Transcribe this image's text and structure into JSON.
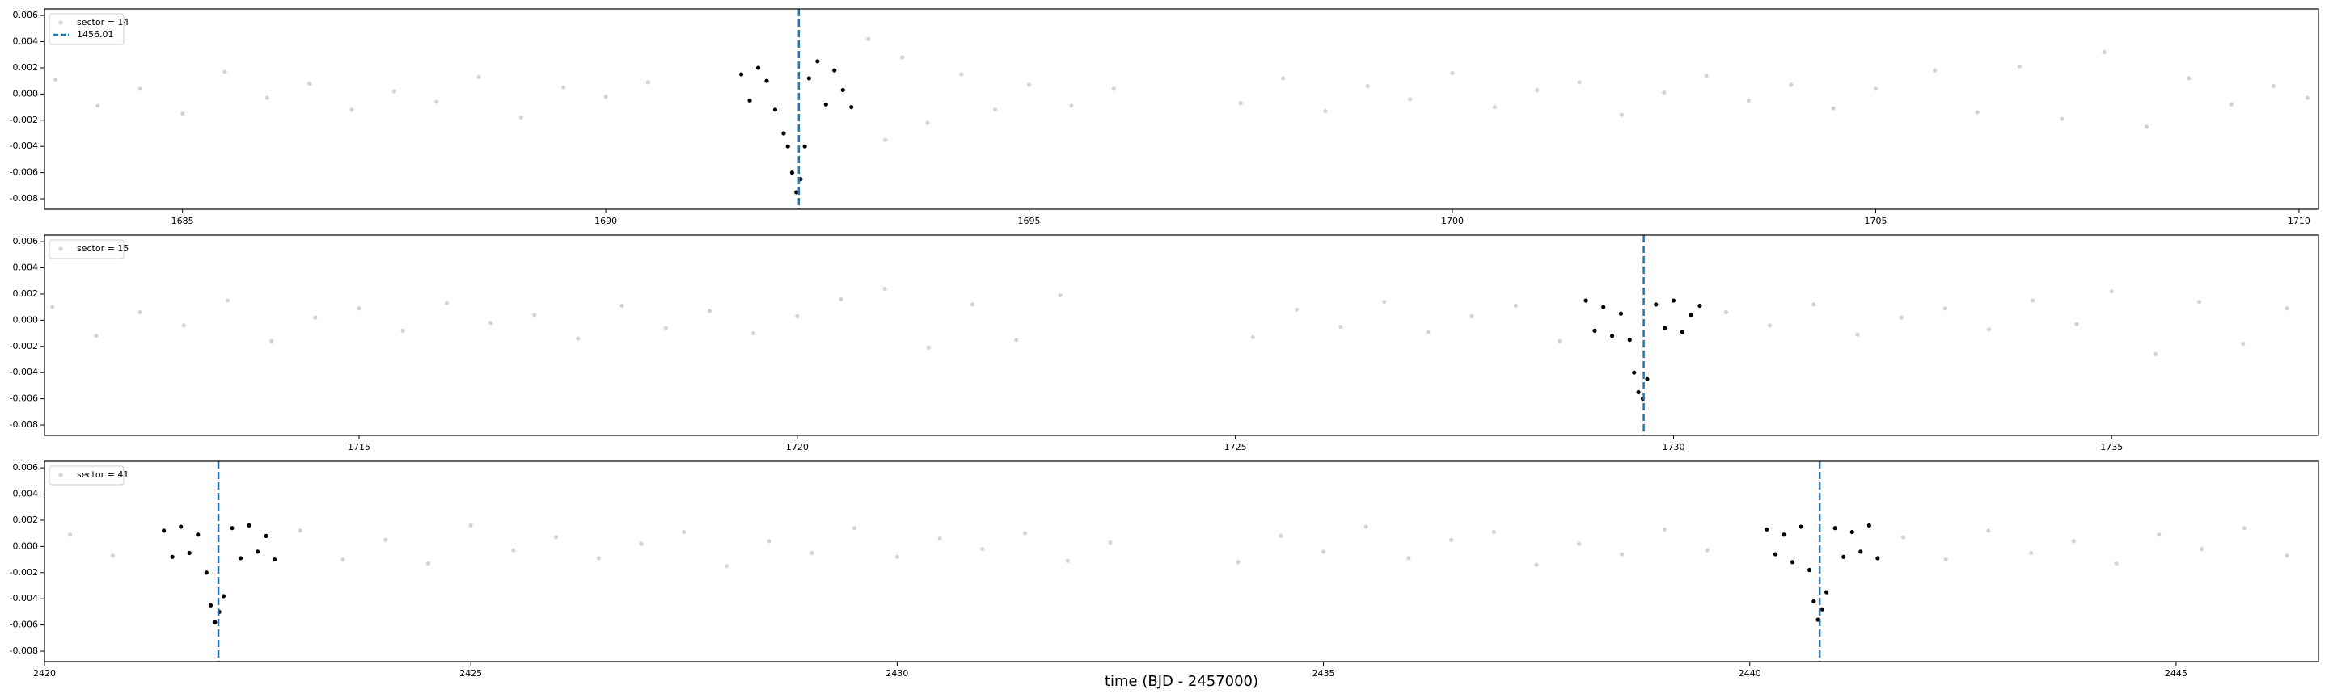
{
  "chart_data": [
    {
      "type": "scatter",
      "xlim": [
        1683.37,
        1710.23
      ],
      "xticks": [
        1685,
        1690,
        1695,
        1700,
        1705,
        1710
      ],
      "ylim": [
        -0.0088,
        0.0065
      ],
      "yticks": [
        -0.008,
        -0.006,
        -0.004,
        -0.002,
        {
          "value": 0,
          "label": "0.000"
        },
        0.002,
        0.004,
        0.006
      ],
      "legend": "upper left",
      "series": [
        {
          "name": "sector = 14",
          "color": "#d3d3d3",
          "x": [
            1683.5,
            1684.0,
            1684.5,
            1685.0,
            1685.5,
            1686.0,
            1686.5,
            1687.0,
            1687.5,
            1688.0,
            1688.5,
            1689.0,
            1689.5,
            1690.0,
            1690.5,
            1693.1,
            1693.3,
            1693.5,
            1693.8,
            1694.2,
            1694.6,
            1695.0,
            1695.5,
            1696.0,
            1697.5,
            1698.0,
            1698.5,
            1699.0,
            1699.5,
            1700.0,
            1700.5,
            1701.0,
            1701.5,
            1702.0,
            1702.5,
            1703.0,
            1703.5,
            1704.0,
            1704.5,
            1705.0,
            1705.7,
            1706.2,
            1706.7,
            1707.2,
            1707.7,
            1708.2,
            1708.7,
            1709.2,
            1709.7,
            1710.1
          ],
          "values": [
            0.0011,
            -0.0009,
            0.0004,
            -0.0015,
            0.0017,
            -0.0003,
            0.0008,
            -0.0012,
            0.0002,
            -0.0006,
            0.0013,
            -0.0018,
            0.0005,
            -0.0002,
            0.0009,
            0.0042,
            -0.0035,
            0.0028,
            -0.0022,
            0.0015,
            -0.0012,
            0.0007,
            -0.0009,
            0.0004,
            -0.0007,
            0.0012,
            -0.0013,
            0.0006,
            -0.0004,
            0.0016,
            -0.001,
            0.0003,
            0.0009,
            -0.0016,
            0.0001,
            0.0014,
            -0.0005,
            0.0007,
            -0.0011,
            0.0004,
            0.0018,
            -0.0014,
            0.0021,
            -0.0019,
            0.0032,
            -0.0025,
            0.0012,
            -0.0008,
            0.0006,
            -0.0003
          ]
        },
        {
          "color": "#000000",
          "x": [
            1691.6,
            1691.7,
            1691.8,
            1691.9,
            1692.0,
            1692.1,
            1692.15,
            1692.2,
            1692.25,
            1692.3,
            1692.35,
            1692.4,
            1692.5,
            1692.6,
            1692.7,
            1692.8,
            1692.9
          ],
          "values": [
            0.0015,
            -0.0005,
            0.002,
            0.001,
            -0.0012,
            -0.003,
            -0.004,
            -0.006,
            -0.0075,
            -0.0065,
            -0.004,
            0.0012,
            0.0025,
            -0.0008,
            0.0018,
            0.0003,
            -0.001
          ]
        }
      ],
      "vlines": {
        "name": "1456.01",
        "color": "#1f77b4",
        "x": [
          1692.28
        ]
      }
    },
    {
      "type": "scatter",
      "xlim": [
        1711.41,
        1737.36
      ],
      "xticks": [
        1715,
        1720,
        1725,
        1730,
        1735
      ],
      "ylim": [
        -0.0088,
        0.0065
      ],
      "yticks": [
        -0.008,
        -0.006,
        -0.004,
        -0.002,
        {
          "value": 0,
          "label": "0.000"
        },
        0.002,
        0.004,
        0.006
      ],
      "legend": "upper left",
      "series": [
        {
          "name": "sector = 15",
          "color": "#d3d3d3",
          "x": [
            1711.5,
            1712.0,
            1712.5,
            1713.0,
            1713.5,
            1714.0,
            1714.5,
            1715.0,
            1715.5,
            1716.0,
            1716.5,
            1717.0,
            1717.5,
            1718.0,
            1718.5,
            1719.0,
            1719.5,
            1720.0,
            1720.5,
            1721.0,
            1721.5,
            1722.0,
            1722.5,
            1723.0,
            1725.2,
            1725.7,
            1726.2,
            1726.7,
            1727.2,
            1727.7,
            1728.2,
            1728.7,
            1730.6,
            1731.1,
            1731.6,
            1732.1,
            1732.6,
            1733.1,
            1733.6,
            1734.1,
            1734.6,
            1735.0,
            1735.5,
            1736.0,
            1736.5,
            1737.0
          ],
          "values": [
            0.001,
            -0.0012,
            0.0006,
            -0.0004,
            0.0015,
            -0.0016,
            0.0002,
            0.0009,
            -0.0008,
            0.0013,
            -0.0002,
            0.0004,
            -0.0014,
            0.0011,
            -0.0006,
            0.0007,
            -0.001,
            0.0003,
            0.0016,
            0.0024,
            -0.0021,
            0.0012,
            -0.0015,
            0.0019,
            -0.0013,
            0.0008,
            -0.0005,
            0.0014,
            -0.0009,
            0.0003,
            0.0011,
            -0.0016,
            0.0006,
            -0.0004,
            0.0012,
            -0.0011,
            0.0002,
            0.0009,
            -0.0007,
            0.0015,
            -0.0003,
            0.0022,
            -0.0026,
            0.0014,
            -0.0018,
            0.0009
          ]
        },
        {
          "color": "#000000",
          "x": [
            1729.0,
            1729.1,
            1729.2,
            1729.3,
            1729.4,
            1729.5,
            1729.55,
            1729.6,
            1729.65,
            1729.7,
            1729.8,
            1729.9,
            1730.0,
            1730.1,
            1730.2,
            1730.3
          ],
          "values": [
            0.0015,
            -0.0008,
            0.001,
            -0.0012,
            0.0005,
            -0.0015,
            -0.004,
            -0.0055,
            -0.006,
            -0.0045,
            0.0012,
            -0.0006,
            0.0015,
            -0.0009,
            0.0004,
            0.0011
          ]
        }
      ],
      "vlines": {
        "color": "#1f77b4",
        "x": [
          1729.66
        ]
      }
    },
    {
      "type": "scatter",
      "xlim": [
        2420,
        2446.67
      ],
      "xticks": [
        2420,
        2425,
        2430,
        2435,
        2440,
        2445
      ],
      "ylim": [
        -0.0088,
        0.0065
      ],
      "yticks": [
        -0.008,
        -0.006,
        -0.004,
        -0.002,
        {
          "value": 0,
          "label": "0.000"
        },
        0.002,
        0.004,
        0.006
      ],
      "xlabel": "time (BJD - 2457000)",
      "legend": "upper left",
      "series": [
        {
          "name": "sector = 41",
          "color": "#d3d3d3",
          "x": [
            2420.3,
            2420.8,
            2423.0,
            2423.5,
            2424.0,
            2424.5,
            2425.0,
            2425.5,
            2426.0,
            2426.5,
            2427.0,
            2427.5,
            2428.0,
            2428.5,
            2429.0,
            2429.5,
            2430.0,
            2430.5,
            2431.0,
            2431.5,
            2432.0,
            2432.5,
            2434.0,
            2434.5,
            2435.0,
            2435.5,
            2436.0,
            2436.5,
            2437.0,
            2437.5,
            2438.0,
            2438.5,
            2439.0,
            2439.5,
            2441.8,
            2442.3,
            2442.8,
            2443.3,
            2443.8,
            2444.3,
            2444.8,
            2445.3,
            2445.8,
            2446.3
          ],
          "values": [
            0.0009,
            -0.0007,
            0.0012,
            -0.001,
            0.0005,
            -0.0013,
            0.0016,
            -0.0003,
            0.0007,
            -0.0009,
            0.0002,
            0.0011,
            -0.0015,
            0.0004,
            -0.0005,
            0.0014,
            -0.0008,
            0.0006,
            -0.0002,
            0.001,
            -0.0011,
            0.0003,
            -0.0012,
            0.0008,
            -0.0004,
            0.0015,
            -0.0009,
            0.0005,
            0.0011,
            -0.0014,
            0.0002,
            -0.0006,
            0.0013,
            -0.0003,
            0.0007,
            -0.001,
            0.0012,
            -0.0005,
            0.0004,
            -0.0013,
            0.0009,
            -0.0002,
            0.0014,
            -0.0007
          ]
        },
        {
          "color": "#000000",
          "x": [
            2421.4,
            2421.5,
            2421.6,
            2421.7,
            2421.8,
            2421.9,
            2421.95,
            2422.0,
            2422.05,
            2422.1,
            2422.2,
            2422.3,
            2422.4,
            2422.5,
            2422.6,
            2422.7,
            2440.2,
            2440.3,
            2440.4,
            2440.5,
            2440.6,
            2440.7,
            2440.75,
            2440.8,
            2440.85,
            2440.9,
            2441.0,
            2441.1,
            2441.2,
            2441.3,
            2441.4,
            2441.5
          ],
          "values": [
            0.0012,
            -0.0008,
            0.0015,
            -0.0005,
            0.0009,
            -0.002,
            -0.0045,
            -0.0058,
            -0.005,
            -0.0038,
            0.0014,
            -0.0009,
            0.0016,
            -0.0004,
            0.0008,
            -0.001,
            0.0013,
            -0.0006,
            0.0009,
            -0.0012,
            0.0015,
            -0.0018,
            -0.0042,
            -0.0056,
            -0.0048,
            -0.0035,
            0.0014,
            -0.0008,
            0.0011,
            -0.0004,
            0.0016,
            -0.0009
          ]
        }
      ],
      "vlines": {
        "color": "#1f77b4",
        "x": [
          2422.04,
          2440.82
        ]
      }
    }
  ]
}
